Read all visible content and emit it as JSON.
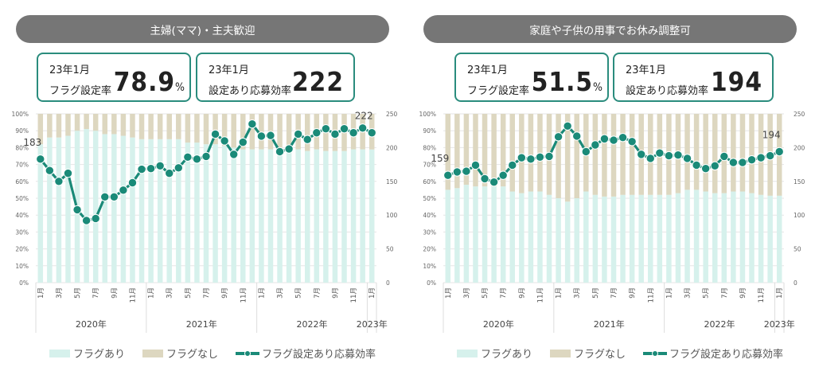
{
  "panels": [
    {
      "title": "主婦(ママ)・主夫歓迎",
      "kpi_rate": {
        "date": "23年1月",
        "label": "フラグ設定率",
        "value": "78.9",
        "unit": "%"
      },
      "kpi_eff": {
        "date": "23年1月",
        "label": "設定あり応募効率",
        "value": "222"
      }
    },
    {
      "title": "家庭や子供の用事でお休み調整可",
      "kpi_rate": {
        "date": "23年1月",
        "label": "フラグ設定率",
        "value": "51.5",
        "unit": "%"
      },
      "kpi_eff": {
        "date": "23年1月",
        "label": "設定あり応募効率",
        "value": "194"
      }
    }
  ],
  "legend": {
    "flag_on": "フラグあり",
    "flag_off": "フラグなし",
    "efficiency": "フラグ設定あり応募効率"
  },
  "colors": {
    "flag_on": "#d6f1ec",
    "flag_off": "#ddd7c0",
    "line": "#1a8a78",
    "pill": "#767676",
    "kpi_border": "#2a8c7d"
  },
  "chart_data": [
    {
      "type": "bar+line",
      "title": "主婦(ママ)・主夫歓迎",
      "x_month_labels": [
        "1月",
        "",
        "3月",
        "",
        "5月",
        "",
        "7月",
        "",
        "9月",
        "",
        "11月",
        "",
        "1月",
        "",
        "3月",
        "",
        "5月",
        "",
        "7月",
        "",
        "9月",
        "",
        "11月",
        "",
        "1月",
        "",
        "3月",
        "",
        "5月",
        "",
        "7月",
        "",
        "9月",
        "",
        "11月",
        "",
        "1月"
      ],
      "x_year_groups": [
        {
          "label": "2020年",
          "count": 12
        },
        {
          "label": "2021年",
          "count": 12
        },
        {
          "label": "2022年",
          "count": 12
        },
        {
          "label": "2023年",
          "count": 1
        }
      ],
      "y_left_ticks": [
        "0%",
        "10%",
        "20%",
        "30%",
        "40%",
        "50%",
        "60%",
        "70%",
        "80%",
        "90%",
        "100%"
      ],
      "y_right_ticks": [
        "0",
        "50",
        "100",
        "150",
        "200",
        "250"
      ],
      "y_left_range": [
        0,
        100
      ],
      "y_right_range": [
        0,
        250
      ],
      "series": [
        {
          "name": "フラグあり",
          "kind": "stacked-bar",
          "values": [
            82,
            86,
            86,
            87,
            90,
            91,
            90,
            88,
            88,
            87,
            86,
            85,
            85,
            85,
            85,
            85,
            83,
            83,
            82,
            82,
            81,
            80,
            79,
            79,
            79,
            79,
            79,
            79,
            79,
            78,
            79,
            78,
            78,
            78,
            79,
            79,
            78.9
          ]
        },
        {
          "name": "フラグなし",
          "kind": "stacked-bar",
          "values": [
            18,
            14,
            14,
            13,
            10,
            9,
            10,
            12,
            12,
            13,
            14,
            15,
            15,
            15,
            15,
            15,
            17,
            17,
            18,
            18,
            19,
            20,
            21,
            21,
            21,
            21,
            21,
            21,
            21,
            22,
            21,
            22,
            22,
            22,
            21,
            21,
            21.1
          ]
        },
        {
          "name": "フラグ設定あり応募効率",
          "kind": "line",
          "axis": "right",
          "values": [
            183,
            166,
            150,
            162,
            108,
            92,
            95,
            127,
            127,
            137,
            148,
            168,
            169,
            173,
            162,
            170,
            186,
            183,
            187,
            220,
            210,
            190,
            208,
            235,
            217,
            218,
            194,
            198,
            220,
            212,
            222,
            228,
            220,
            228,
            222,
            229,
            222
          ]
        }
      ],
      "annotations": [
        {
          "index": 0,
          "text": "183"
        },
        {
          "index": 36,
          "text": "222"
        }
      ]
    },
    {
      "type": "bar+line",
      "title": "家庭や子供の用事でお休み調整可",
      "x_month_labels": [
        "1月",
        "",
        "3月",
        "",
        "5月",
        "",
        "7月",
        "",
        "9月",
        "",
        "11月",
        "",
        "1月",
        "",
        "3月",
        "",
        "5月",
        "",
        "7月",
        "",
        "9月",
        "",
        "11月",
        "",
        "1月",
        "",
        "3月",
        "",
        "5月",
        "",
        "7月",
        "",
        "9月",
        "",
        "11月",
        "",
        "1月"
      ],
      "x_year_groups": [
        {
          "label": "2020年",
          "count": 12
        },
        {
          "label": "2021年",
          "count": 12
        },
        {
          "label": "2022年",
          "count": 12
        },
        {
          "label": "2023年",
          "count": 1
        }
      ],
      "y_left_ticks": [
        "0%",
        "10%",
        "20%",
        "30%",
        "40%",
        "50%",
        "60%",
        "70%",
        "80%",
        "90%",
        "100%"
      ],
      "y_right_ticks": [
        "0",
        "50",
        "100",
        "150",
        "200",
        "250"
      ],
      "y_left_range": [
        0,
        100
      ],
      "y_right_range": [
        0,
        250
      ],
      "series": [
        {
          "name": "フラグあり",
          "kind": "stacked-bar",
          "values": [
            55,
            56,
            58,
            57,
            57,
            57,
            57,
            54,
            53,
            54,
            54,
            52,
            50,
            48,
            50,
            54,
            52,
            51,
            51,
            52,
            52,
            52,
            52,
            52,
            52,
            53,
            55,
            55,
            54,
            53,
            53,
            54,
            54,
            53,
            52,
            51.5,
            51.5
          ]
        },
        {
          "name": "フラグなし",
          "kind": "stacked-bar",
          "values": [
            45,
            44,
            42,
            43,
            43,
            43,
            43,
            46,
            47,
            46,
            46,
            48,
            50,
            52,
            50,
            46,
            48,
            49,
            49,
            48,
            48,
            48,
            48,
            48,
            48,
            47,
            45,
            45,
            46,
            47,
            47,
            46,
            46,
            47,
            48,
            48.5,
            48.5
          ]
        },
        {
          "name": "フラグ設定あり応募効率",
          "kind": "line",
          "axis": "right",
          "values": [
            159,
            164,
            165,
            174,
            154,
            149,
            159,
            174,
            185,
            183,
            186,
            187,
            216,
            232,
            217,
            194,
            204,
            213,
            211,
            215,
            209,
            190,
            184,
            192,
            188,
            189,
            184,
            174,
            169,
            173,
            187,
            178,
            178,
            182,
            185,
            188,
            194
          ]
        }
      ],
      "annotations": [
        {
          "index": 0,
          "text": "159"
        },
        {
          "index": 36,
          "text": "194"
        }
      ]
    }
  ]
}
